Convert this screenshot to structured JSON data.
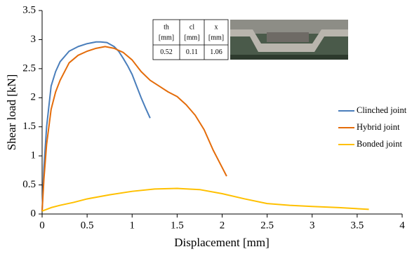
{
  "chart_data": {
    "type": "line",
    "xlabel": "Displacement [mm]",
    "ylabel": "Shear load [kN]",
    "xlim": [
      0,
      4
    ],
    "xticks": [
      0,
      0.5,
      1,
      1.5,
      2,
      2.5,
      3,
      3.5,
      4
    ],
    "ylim": [
      0,
      3.5
    ],
    "yticks": [
      0,
      0.5,
      1,
      1.5,
      2,
      2.5,
      3,
      3.5
    ],
    "grid": false,
    "legend": "right",
    "series": [
      {
        "name": "Clinched joint",
        "color": "#4a7ebb",
        "x": [
          0,
          0.02,
          0.05,
          0.1,
          0.15,
          0.2,
          0.3,
          0.4,
          0.5,
          0.6,
          0.65,
          0.72,
          0.8,
          0.85,
          0.9,
          0.95,
          1.0,
          1.05,
          1.1,
          1.15,
          1.2
        ],
        "values": [
          0.05,
          0.8,
          1.5,
          2.2,
          2.45,
          2.62,
          2.8,
          2.88,
          2.93,
          2.96,
          2.96,
          2.95,
          2.88,
          2.8,
          2.68,
          2.55,
          2.4,
          2.2,
          2.0,
          1.82,
          1.65
        ]
      },
      {
        "name": "Hybrid joint",
        "color": "#e46c0a",
        "x": [
          0,
          0.02,
          0.05,
          0.1,
          0.15,
          0.2,
          0.3,
          0.4,
          0.5,
          0.6,
          0.7,
          0.8,
          0.9,
          1.0,
          1.1,
          1.2,
          1.3,
          1.4,
          1.5,
          1.6,
          1.7,
          1.8,
          1.9,
          2.0,
          2.05
        ],
        "values": [
          0.05,
          0.6,
          1.2,
          1.8,
          2.1,
          2.3,
          2.6,
          2.73,
          2.8,
          2.85,
          2.88,
          2.85,
          2.78,
          2.65,
          2.45,
          2.3,
          2.2,
          2.1,
          2.02,
          1.88,
          1.7,
          1.45,
          1.1,
          0.8,
          0.65
        ]
      },
      {
        "name": "Bonded joint",
        "color": "#ffc000",
        "x": [
          0,
          0.1,
          0.2,
          0.35,
          0.5,
          0.75,
          1.0,
          1.25,
          1.5,
          1.75,
          2.0,
          2.25,
          2.5,
          2.75,
          3.0,
          3.3,
          3.63
        ],
        "values": [
          0.05,
          0.11,
          0.15,
          0.2,
          0.26,
          0.33,
          0.39,
          0.43,
          0.44,
          0.42,
          0.35,
          0.26,
          0.18,
          0.15,
          0.13,
          0.11,
          0.08
        ]
      }
    ],
    "inset_table": {
      "headers": [
        "th",
        "cl",
        "x"
      ],
      "units": [
        "[mm]",
        "[mm]",
        "[mm]"
      ],
      "values": [
        "0.52",
        "0.11",
        "1.06"
      ]
    }
  }
}
